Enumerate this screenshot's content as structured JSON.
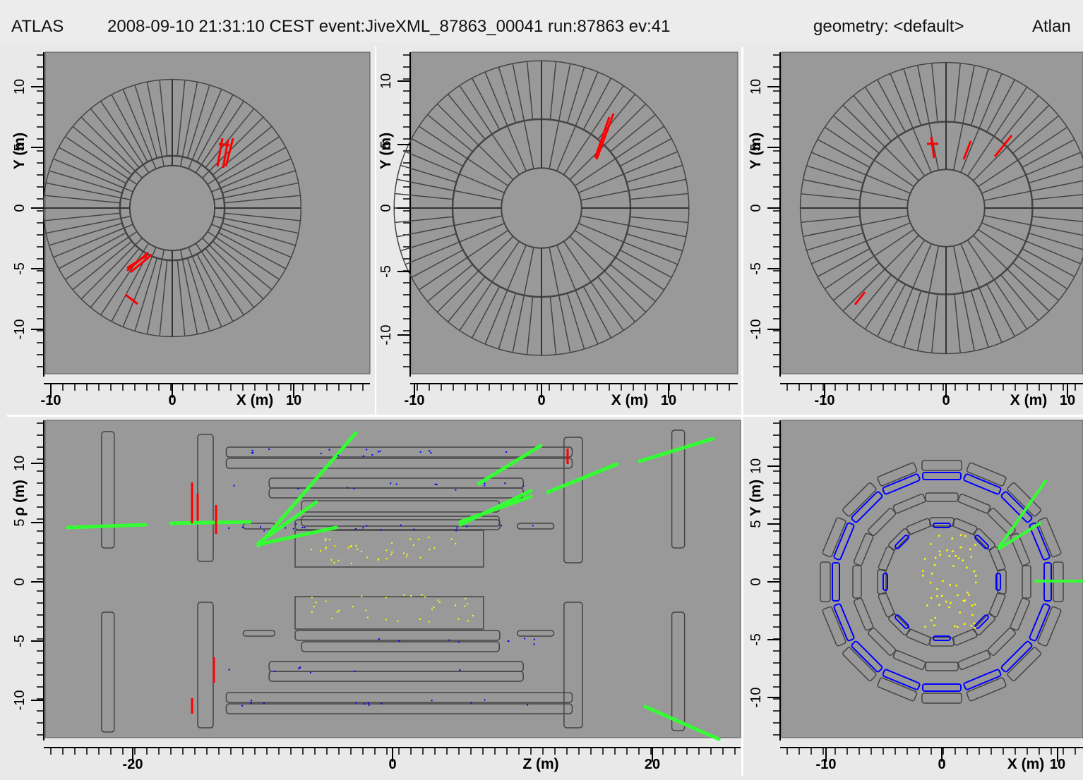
{
  "header": {
    "app": "ATLAS",
    "event_info": "2008-09-10 21:31:10 CEST event:JiveXML_87863_00041 run:87863 ev:41",
    "geometry": "geometry: <default>",
    "right_text": "Atlan"
  },
  "panels": {
    "top_left": {
      "ylabel": "Y (m)",
      "xlabel": "X (m)",
      "xticks": [
        "-10",
        "0",
        "10"
      ],
      "yticks": [
        "10",
        "5",
        "0",
        "-5",
        "-10"
      ]
    },
    "top_middle": {
      "ylabel": "Y (m)",
      "xlabel": "X (m)",
      "xticks": [
        "-10",
        "0",
        "10"
      ],
      "yticks": [
        "10",
        "5",
        "0",
        "-5",
        "-10"
      ]
    },
    "top_right": {
      "ylabel": "Y (m)",
      "xlabel": "X (m)",
      "xticks": [
        "-10",
        "0",
        "10"
      ],
      "yticks": [
        "10",
        "5",
        "0",
        "-5",
        "-10"
      ]
    },
    "bottom_left": {
      "ylabel": "ρ (m)",
      "xlabel": "Z (m)",
      "xticks": [
        "-20",
        "0",
        "20"
      ],
      "yticks": [
        "10",
        "5",
        "0",
        "-5",
        "-10"
      ]
    },
    "bottom_right": {
      "ylabel": "Y (m)",
      "xlabel": "X (m)",
      "xticks": [
        "-10",
        "0",
        "10"
      ],
      "yticks": [
        "10",
        "5",
        "0",
        "-5",
        "-10"
      ]
    }
  },
  "colors": {
    "plot_bg": "#999999",
    "outline": "#444444",
    "track_red": "#ff0000",
    "track_green": "#33ff33",
    "hits_blue": "#0000ff",
    "hits_yellow": "#ffff00"
  }
}
